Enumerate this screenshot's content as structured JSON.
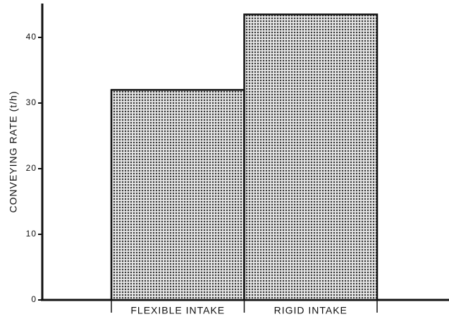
{
  "chart_data": {
    "type": "bar",
    "y_label": "CONVEYING RATE (t/h)",
    "categories": [
      "FLEXIBLE INTAKE",
      "RIGID INTAKE"
    ],
    "values": [
      32,
      43.5
    ],
    "color": "#333333",
    "ylim": [
      0,
      45
    ],
    "yticks": [
      0,
      10,
      20,
      30,
      40
    ]
  }
}
